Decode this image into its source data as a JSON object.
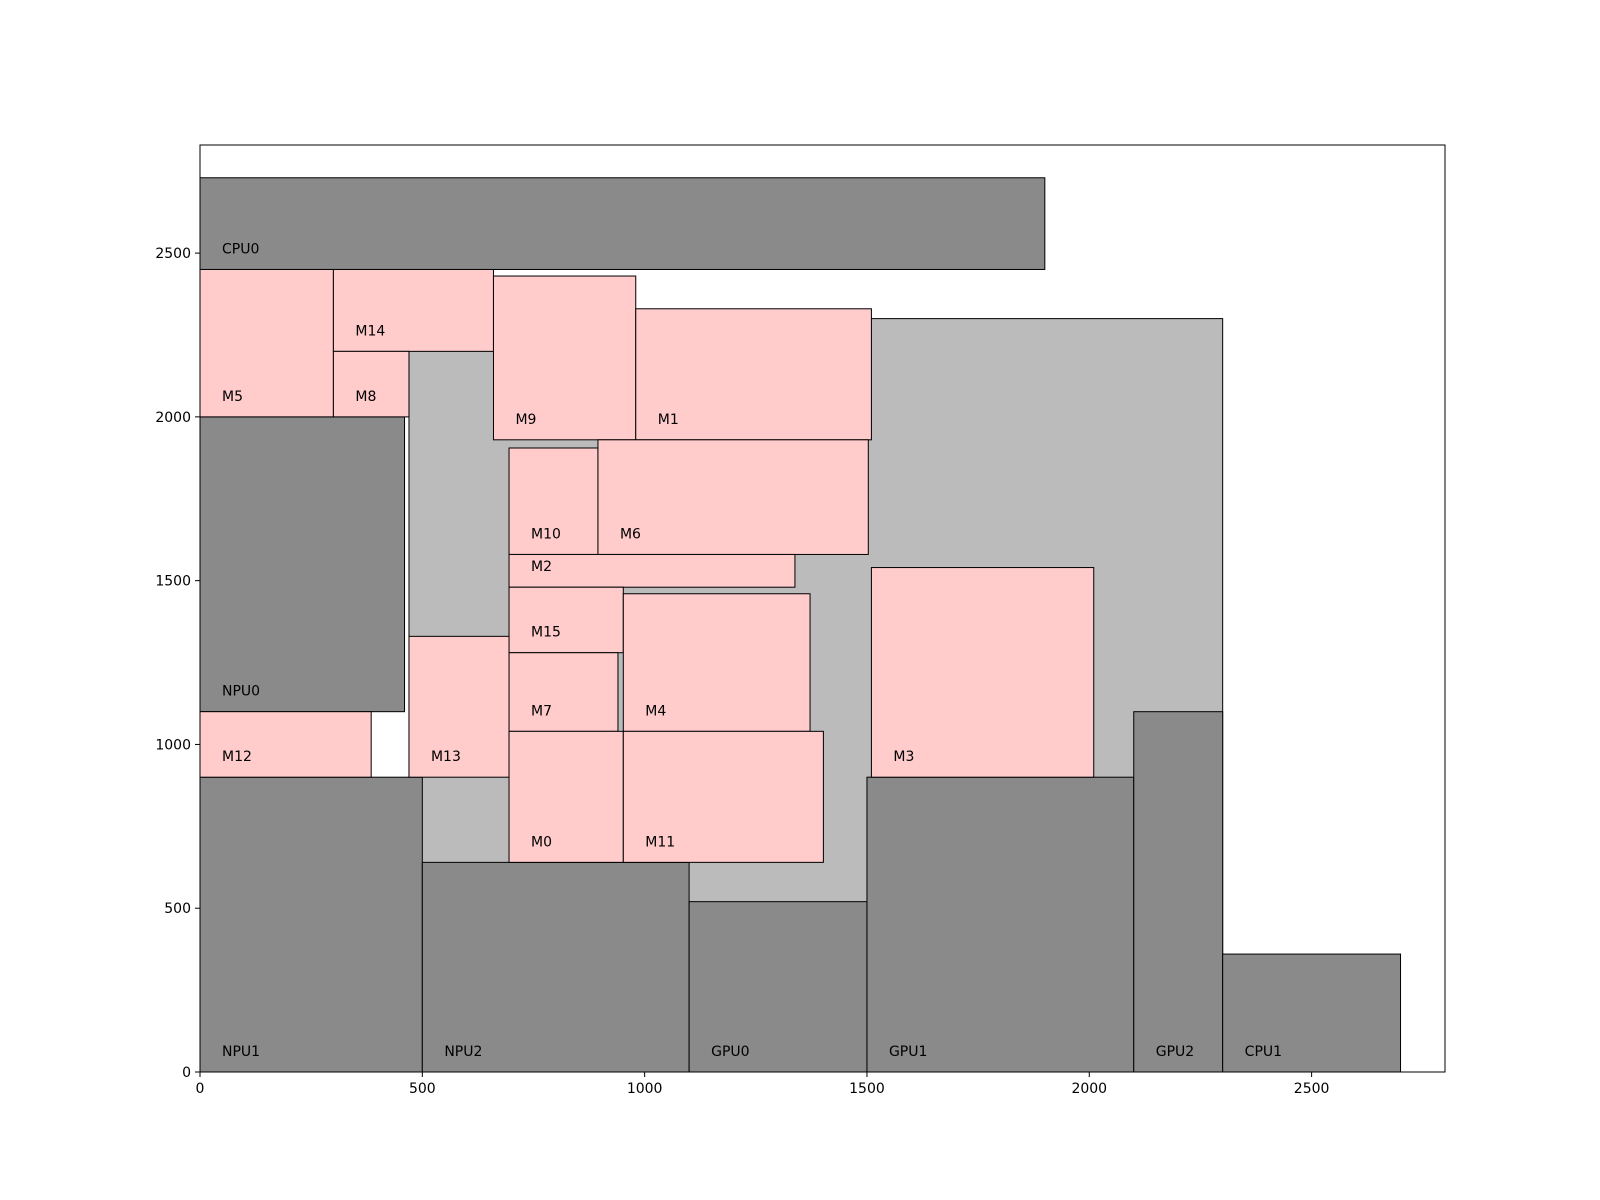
{
  "chart_data": {
    "type": "rectangles",
    "title": "",
    "xlabel": "",
    "ylabel": "",
    "xlim": [
      0,
      2800
    ],
    "ylim": [
      0,
      2830
    ],
    "grid": false,
    "x_ticks": [
      0,
      500,
      1000,
      1500,
      2000,
      2500
    ],
    "y_ticks": [
      0,
      500,
      1000,
      1500,
      2000,
      2500
    ],
    "colors": {
      "region": "#bbbbbb",
      "processor": "#8a8a8a",
      "memory": "#ffcbcb",
      "edge": "#000000"
    },
    "region": {
      "x0": 470,
      "y0": 0,
      "x1": 2300,
      "y1": 2300
    },
    "processors": [
      {
        "label": "CPU0",
        "x0": 0,
        "y0": 2450,
        "x1": 1900,
        "y1": 2730
      },
      {
        "label": "NPU0",
        "x0": 0,
        "y0": 1100,
        "x1": 460,
        "y1": 2000
      },
      {
        "label": "NPU1",
        "x0": 0,
        "y0": 0,
        "x1": 500,
        "y1": 900
      },
      {
        "label": "NPU2",
        "x0": 500,
        "y0": 0,
        "x1": 1100,
        "y1": 640
      },
      {
        "label": "GPU0",
        "x0": 1100,
        "y0": 0,
        "x1": 1500,
        "y1": 520
      },
      {
        "label": "GPU1",
        "x0": 1500,
        "y0": 0,
        "x1": 2100,
        "y1": 900
      },
      {
        "label": "GPU2",
        "x0": 2100,
        "y0": 0,
        "x1": 2300,
        "y1": 1100
      },
      {
        "label": "CPU1",
        "x0": 2300,
        "y0": 0,
        "x1": 2700,
        "y1": 360
      }
    ],
    "memories": [
      {
        "label": "M5",
        "x0": 0,
        "y0": 2000,
        "x1": 300,
        "y1": 2450
      },
      {
        "label": "M14",
        "x0": 300,
        "y0": 2200,
        "x1": 660,
        "y1": 2450
      },
      {
        "label": "M8",
        "x0": 300,
        "y0": 2000,
        "x1": 470,
        "y1": 2200
      },
      {
        "label": "M9",
        "x0": 660,
        "y0": 1930,
        "x1": 980,
        "y1": 2430
      },
      {
        "label": "M1",
        "x0": 980,
        "y0": 1930,
        "x1": 1510,
        "y1": 2330
      },
      {
        "label": "M10",
        "x0": 695,
        "y0": 1580,
        "x1": 895,
        "y1": 1905
      },
      {
        "label": "M6",
        "x0": 895,
        "y0": 1580,
        "x1": 1503,
        "y1": 1930
      },
      {
        "label": "M2",
        "x0": 695,
        "y0": 1480,
        "x1": 1338,
        "y1": 1580
      },
      {
        "label": "M15",
        "x0": 695,
        "y0": 1280,
        "x1": 952,
        "y1": 1480
      },
      {
        "label": "M7",
        "x0": 695,
        "y0": 1040,
        "x1": 940,
        "y1": 1280
      },
      {
        "label": "M4",
        "x0": 952,
        "y0": 1040,
        "x1": 1372,
        "y1": 1460
      },
      {
        "label": "M12",
        "x0": 0,
        "y0": 900,
        "x1": 385,
        "y1": 1100
      },
      {
        "label": "M13",
        "x0": 470,
        "y0": 900,
        "x1": 695,
        "y1": 1330
      },
      {
        "label": "M0",
        "x0": 695,
        "y0": 640,
        "x1": 952,
        "y1": 1040
      },
      {
        "label": "M11",
        "x0": 952,
        "y0": 640,
        "x1": 1402,
        "y1": 1040
      },
      {
        "label": "M3",
        "x0": 1510,
        "y0": 900,
        "x1": 2010,
        "y1": 1540
      }
    ]
  }
}
